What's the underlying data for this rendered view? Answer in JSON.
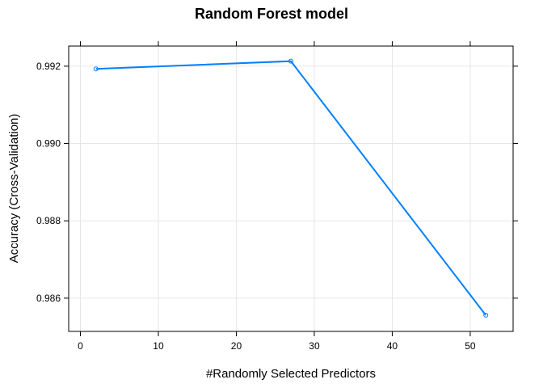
{
  "chart_data": {
    "type": "line",
    "title": "Random Forest model",
    "xlabel": "#Randomly Selected Predictors",
    "ylabel": "Accuracy (Cross-Validation)",
    "xlim": [
      -1.5,
      55.5
    ],
    "ylim": [
      0.98514,
      0.99252
    ],
    "xticks": [
      0,
      10,
      20,
      30,
      40,
      50
    ],
    "yticks": [
      0.986,
      0.988,
      0.99,
      0.992
    ],
    "ytick_labels": [
      "0.986",
      "0.988",
      "0.990",
      "0.992"
    ],
    "grid": true,
    "series": [
      {
        "color": "#0080ff",
        "marker": "open-circle",
        "x": [
          2,
          27,
          52
        ],
        "y": [
          0.99193,
          0.99213,
          0.98556
        ]
      }
    ]
  }
}
